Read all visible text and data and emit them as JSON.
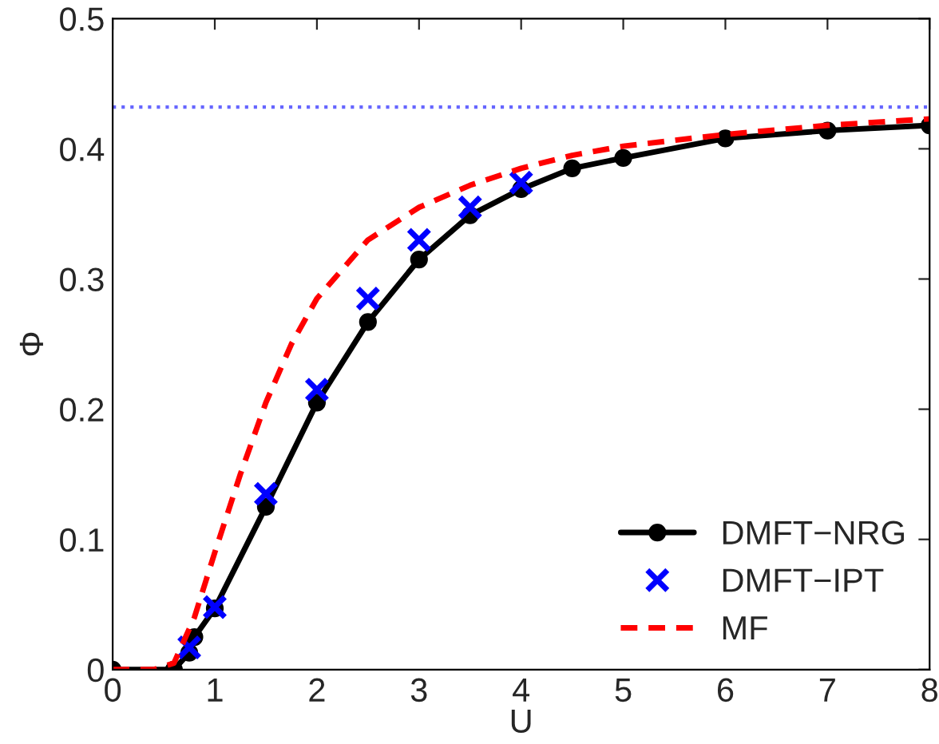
{
  "chart_data": {
    "type": "line",
    "xlabel": "U",
    "ylabel": "Φ",
    "xlim": [
      0,
      8
    ],
    "ylim": [
      0,
      0.5
    ],
    "xticks": [
      0,
      1,
      2,
      3,
      4,
      5,
      6,
      7,
      8
    ],
    "yticks": [
      0,
      0.1,
      0.2,
      0.3,
      0.4,
      0.5
    ],
    "grid": false,
    "legend": "bottom right",
    "series": [
      {
        "name": "DMFT−NRG",
        "color": "#000000",
        "marker": "circle",
        "line_style": "solid",
        "x": [
          0,
          0.6,
          0.75,
          0.8,
          1,
          1.5,
          2,
          2.5,
          3,
          3.5,
          4,
          4.5,
          5,
          6,
          7,
          8
        ],
        "values": [
          0,
          0,
          0.013,
          0.025,
          0.047,
          0.125,
          0.205,
          0.267,
          0.315,
          0.349,
          0.369,
          0.385,
          0.393,
          0.408,
          0.414,
          0.418
        ]
      },
      {
        "name": "DMFT−IPT",
        "type": "scatter",
        "color": "#0000ff",
        "marker": "cross",
        "x": [
          0.75,
          1,
          1.5,
          2,
          2.5,
          3,
          3.5,
          4
        ],
        "values": [
          0.017,
          0.048,
          0.135,
          0.215,
          0.285,
          0.33,
          0.355,
          0.374
        ]
      },
      {
        "name": "MF",
        "color": "#ff0000",
        "marker": "none",
        "line_style": "dashed",
        "x": [
          0,
          0.4,
          0.6,
          0.8,
          1,
          1.25,
          1.5,
          1.75,
          2,
          2.5,
          3,
          3.5,
          4,
          4.5,
          5,
          6,
          7,
          8
        ],
        "values": [
          0,
          0,
          0.005,
          0.04,
          0.09,
          0.15,
          0.205,
          0.25,
          0.285,
          0.33,
          0.355,
          0.372,
          0.385,
          0.395,
          0.402,
          0.411,
          0.418,
          0.423
        ]
      }
    ],
    "ref_lines": [
      {
        "axis": "y",
        "value": 0.432,
        "color": "#6666ff",
        "line_style": "dotted"
      }
    ]
  }
}
